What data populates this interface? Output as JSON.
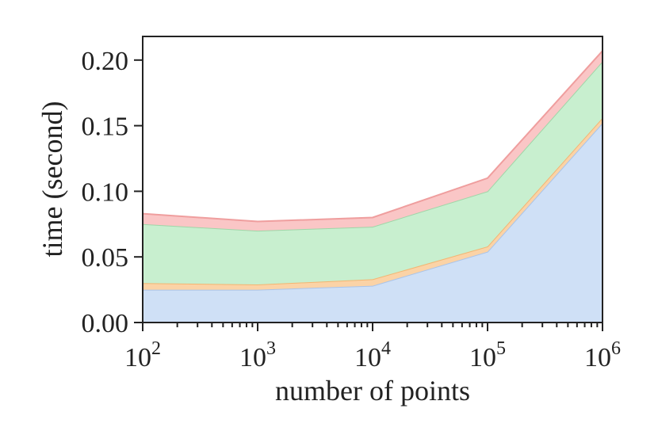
{
  "chart_data": {
    "type": "area",
    "stacked": true,
    "xscale": "log",
    "x": [
      100,
      1000,
      10000,
      100000,
      1000000
    ],
    "xticks": [
      {
        "value": 100,
        "base": "10",
        "exp": "2"
      },
      {
        "value": 1000,
        "base": "10",
        "exp": "3"
      },
      {
        "value": 10000,
        "base": "10",
        "exp": "4"
      },
      {
        "value": 100000,
        "base": "10",
        "exp": "5"
      },
      {
        "value": 1000000,
        "base": "10",
        "exp": "6"
      }
    ],
    "yticks": [
      "0.00",
      "0.05",
      "0.10",
      "0.15",
      "0.20"
    ],
    "xlabel": "number of points",
    "ylabel": "time (second)",
    "xlim": [
      100,
      1000000
    ],
    "ylim": [
      0,
      0.218
    ],
    "grid": false,
    "series": [
      {
        "values": [
          0.025,
          0.025,
          0.028,
          0.054,
          0.152
        ],
        "fill": "#cfe0f6",
        "stroke": "#a9c4ea"
      },
      {
        "values": [
          0.005,
          0.004,
          0.005,
          0.004,
          0.004
        ],
        "fill": "#fbd3a6",
        "stroke": "#f3b572"
      },
      {
        "values": [
          0.045,
          0.041,
          0.04,
          0.042,
          0.043
        ],
        "fill": "#c8efcf",
        "stroke": "#9fd6a8"
      },
      {
        "values": [
          0.008,
          0.007,
          0.007,
          0.01,
          0.008
        ],
        "fill": "#fac6c6",
        "stroke": "#ef9e9e"
      }
    ]
  }
}
